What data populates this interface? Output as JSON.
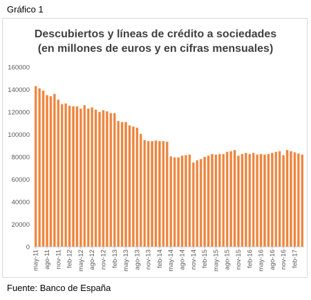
{
  "figure_label": "Gráfico 1",
  "source_note": "Fuente: Banco de España",
  "chart_data": {
    "type": "bar",
    "title_line1": "Descubiertos  y líneas de crédito a sociedades",
    "title_line2": "(en millones de euros y en cifras mensuales)",
    "xlabel": "",
    "ylabel": "",
    "ylim": [
      0,
      160000
    ],
    "yticks": [
      0,
      20000,
      40000,
      60000,
      80000,
      100000,
      120000,
      140000,
      160000
    ],
    "grid": false,
    "bar_color": "#ED7D31",
    "categories": [
      "may-11",
      "jun-11",
      "jul-11",
      "ago-11",
      "sep-11",
      "oct-11",
      "nov-11",
      "dic-11",
      "ene-12",
      "feb-12",
      "mar-12",
      "abr-12",
      "may-12",
      "jun-12",
      "jul-12",
      "ago-12",
      "sep-12",
      "oct-12",
      "nov-12",
      "dic-12",
      "ene-13",
      "feb-13",
      "mar-13",
      "abr-13",
      "may-13",
      "jun-13",
      "jul-13",
      "ago-13",
      "sep-13",
      "oct-13",
      "nov-13",
      "dic-13",
      "ene-14",
      "feb-14",
      "mar-14",
      "abr-14",
      "may-14",
      "jun-14",
      "jul-14",
      "ago-14",
      "sep-14",
      "oct-14",
      "nov-14",
      "dic-14",
      "ene-15",
      "feb-15",
      "mar-15",
      "abr-15",
      "may-15",
      "jun-15",
      "jul-15",
      "ago-15",
      "sep-15",
      "oct-15",
      "nov-15",
      "dic-15",
      "ene-16",
      "feb-16",
      "mar-16",
      "abr-16",
      "may-16",
      "jun-16",
      "jul-16",
      "ago-16",
      "sep-16",
      "oct-16",
      "nov-16",
      "dic-16",
      "ene-17",
      "feb-17",
      "mar-17",
      "abr-17"
    ],
    "tick_labels": [
      "may-11",
      "ago-11",
      "nov-11",
      "feb-12",
      "may-12",
      "ago-12",
      "nov-12",
      "feb-13",
      "may-13",
      "ago-13",
      "nov-13",
      "feb-14",
      "may-14",
      "ago-14",
      "nov-14",
      "feb-15",
      "may-15",
      "ago-15",
      "nov-15",
      "feb-16",
      "may-16",
      "ago-16",
      "nov-16",
      "feb-17"
    ],
    "values": [
      143000,
      141000,
      139000,
      135000,
      134000,
      136000,
      131000,
      127000,
      127500,
      125500,
      125000,
      125000,
      123000,
      126000,
      123000,
      124000,
      122000,
      120000,
      121500,
      120500,
      119000,
      119000,
      112000,
      111000,
      111000,
      108000,
      107000,
      106000,
      100500,
      95000,
      94000,
      94000,
      94500,
      94000,
      94000,
      93500,
      80500,
      79500,
      79500,
      81000,
      81500,
      82000,
      75000,
      77000,
      78000,
      80000,
      81000,
      82500,
      82000,
      82500,
      82500,
      84500,
      85000,
      86000,
      81000,
      82500,
      83500,
      82500,
      83500,
      82000,
      82500,
      82000,
      82500,
      83500,
      84500,
      85000,
      81500,
      86000,
      85000,
      84000,
      83000,
      82000
    ]
  }
}
